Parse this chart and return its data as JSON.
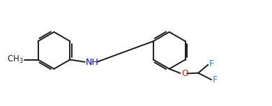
{
  "bg_color": "#ffffff",
  "line_color": "#1a1a1a",
  "label_color_N": "#0000cd",
  "label_color_O": "#cc2200",
  "label_color_F": "#2288cc",
  "line_width": 1.4,
  "font_size_atom": 9.0,
  "figsize": [
    3.9,
    1.52
  ],
  "dpi": 100,
  "xlim": [
    0,
    10.5
  ],
  "ylim": [
    0.0,
    4.1
  ]
}
